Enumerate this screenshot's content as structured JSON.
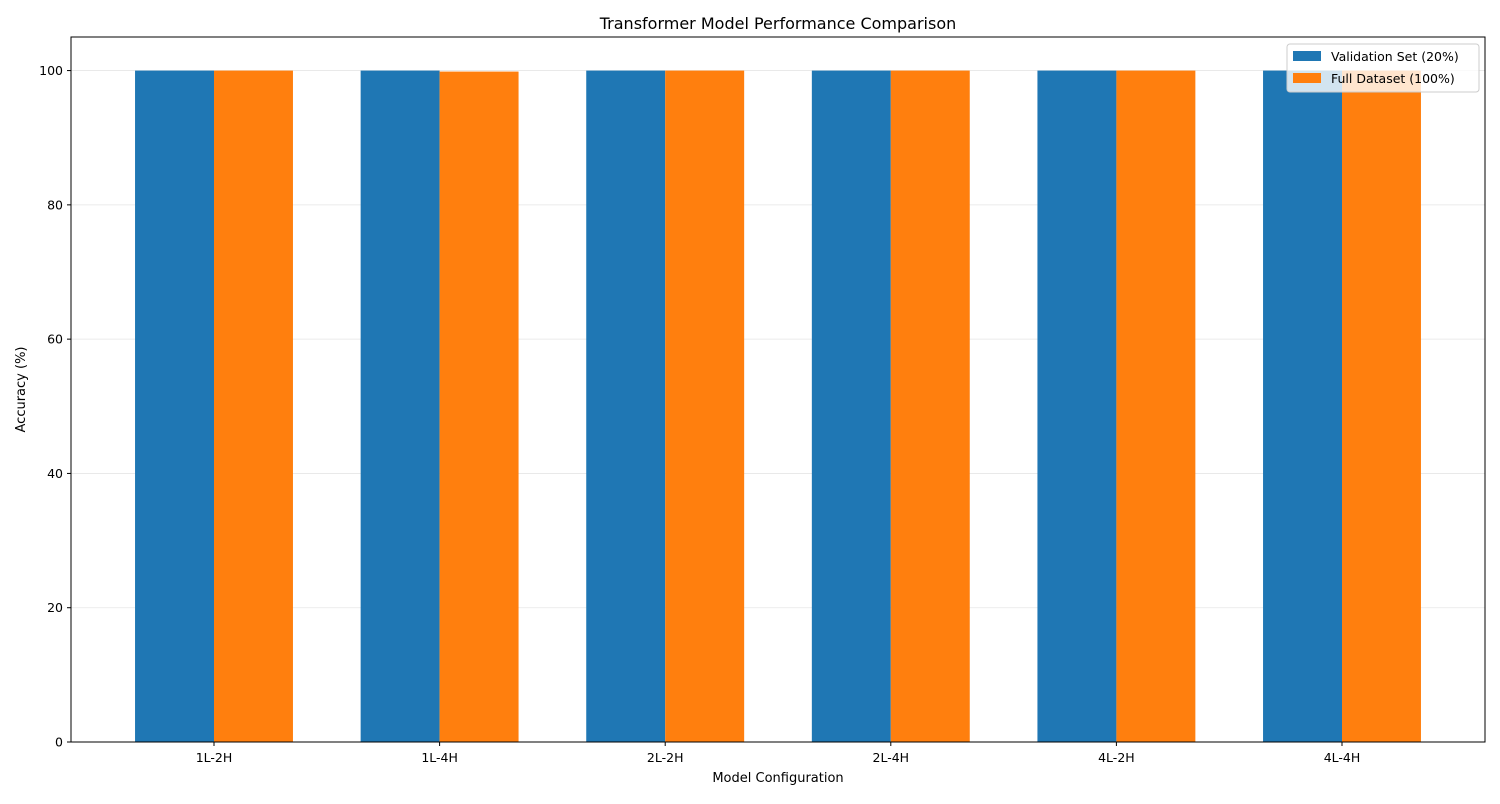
{
  "chart_data": {
    "type": "bar",
    "title": "Transformer Model Performance Comparison",
    "xlabel": "Model Configuration",
    "ylabel": "Accuracy (%)",
    "categories": [
      "1L-2H",
      "1L-4H",
      "2L-2H",
      "2L-4H",
      "4L-2H",
      "4L-4H"
    ],
    "series": [
      {
        "name": "Validation Set (20%)",
        "color": "#1f77b4",
        "values": [
          100.0,
          100.0,
          100.0,
          100.0,
          100.0,
          100.0
        ]
      },
      {
        "name": "Full Dataset (100%)",
        "color": "#ff7f0e",
        "values": [
          100.0,
          99.85,
          100.0,
          100.0,
          100.0,
          100.0
        ]
      }
    ],
    "ylim": [
      0,
      105
    ],
    "yticks": [
      0,
      20,
      40,
      60,
      80,
      100
    ],
    "grid": "y",
    "legend_position": "top-right"
  }
}
